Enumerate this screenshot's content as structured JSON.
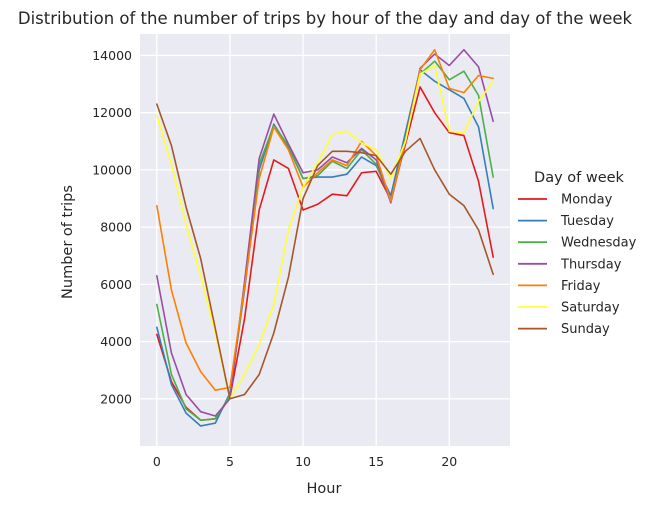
{
  "chart_data": {
    "type": "line",
    "title": "Distribution of the number of trips by hour of the day and day of the week",
    "xlabel": "Hour",
    "ylabel": "Number of trips",
    "xlim": [
      -1.15,
      24.15
    ],
    "ylim": [
      350,
      14750
    ],
    "xticks": [
      0,
      5,
      10,
      15,
      20
    ],
    "yticks": [
      2000,
      4000,
      6000,
      8000,
      10000,
      12000,
      14000
    ],
    "grid": true,
    "legend_title": "Day of week",
    "legend_position": "right",
    "x": [
      0,
      1,
      2,
      3,
      4,
      5,
      6,
      7,
      8,
      9,
      10,
      11,
      12,
      13,
      14,
      15,
      16,
      17,
      18,
      19,
      20,
      21,
      22,
      23
    ],
    "series": [
      {
        "name": "Monday",
        "color": "#e41a1c",
        "values": [
          4250,
          2600,
          1700,
          1250,
          1300,
          2050,
          4800,
          8600,
          10350,
          10050,
          8600,
          8800,
          9150,
          9100,
          9900,
          9950,
          8950,
          10900,
          12900,
          12000,
          11300,
          11200,
          9600,
          6950
        ]
      },
      {
        "name": "Tuesday",
        "color": "#377eb8",
        "values": [
          4500,
          2500,
          1500,
          1050,
          1150,
          2200,
          5800,
          10000,
          11600,
          10800,
          9700,
          9750,
          9750,
          9850,
          10450,
          10150,
          9100,
          11300,
          13500,
          13100,
          12800,
          12500,
          11500,
          8650
        ]
      },
      {
        "name": "Wednesday",
        "color": "#4daf4a",
        "values": [
          5300,
          2850,
          1650,
          1250,
          1300,
          2100,
          5900,
          10200,
          11550,
          10850,
          9700,
          9800,
          10300,
          10050,
          10700,
          10200,
          8900,
          11100,
          13350,
          13800,
          13150,
          13450,
          12600,
          9750
        ]
      },
      {
        "name": "Thursday",
        "color": "#984ea3",
        "values": [
          6300,
          3600,
          2150,
          1550,
          1400,
          2000,
          6100,
          10400,
          11950,
          10900,
          9900,
          10000,
          10450,
          10250,
          10750,
          10350,
          8850,
          11000,
          13550,
          14050,
          13650,
          14200,
          13600,
          11700
        ]
      },
      {
        "name": "Friday",
        "color": "#ff7f00",
        "values": [
          8750,
          5800,
          3950,
          2950,
          2300,
          2400,
          5900,
          9700,
          11500,
          10700,
          9400,
          9900,
          10350,
          10150,
          11000,
          10500,
          8900,
          11000,
          13500,
          14200,
          12850,
          12700,
          13300,
          13200
        ]
      },
      {
        "name": "Saturday",
        "color": "#ffff33",
        "values": [
          11900,
          10200,
          8100,
          6300,
          4300,
          2000,
          2850,
          3900,
          5300,
          7900,
          9400,
          10250,
          11250,
          11350,
          10950,
          10700,
          9700,
          11000,
          13350,
          13650,
          11350,
          11300,
          12400,
          13100
        ]
      },
      {
        "name": "Sunday",
        "color": "#a65628",
        "values": [
          12300,
          10850,
          8700,
          6900,
          4450,
          2000,
          2150,
          2850,
          4300,
          6250,
          9000,
          10150,
          10650,
          10650,
          10600,
          10500,
          9850,
          10650,
          11100,
          10000,
          9150,
          8750,
          7900,
          6350
        ]
      }
    ]
  }
}
